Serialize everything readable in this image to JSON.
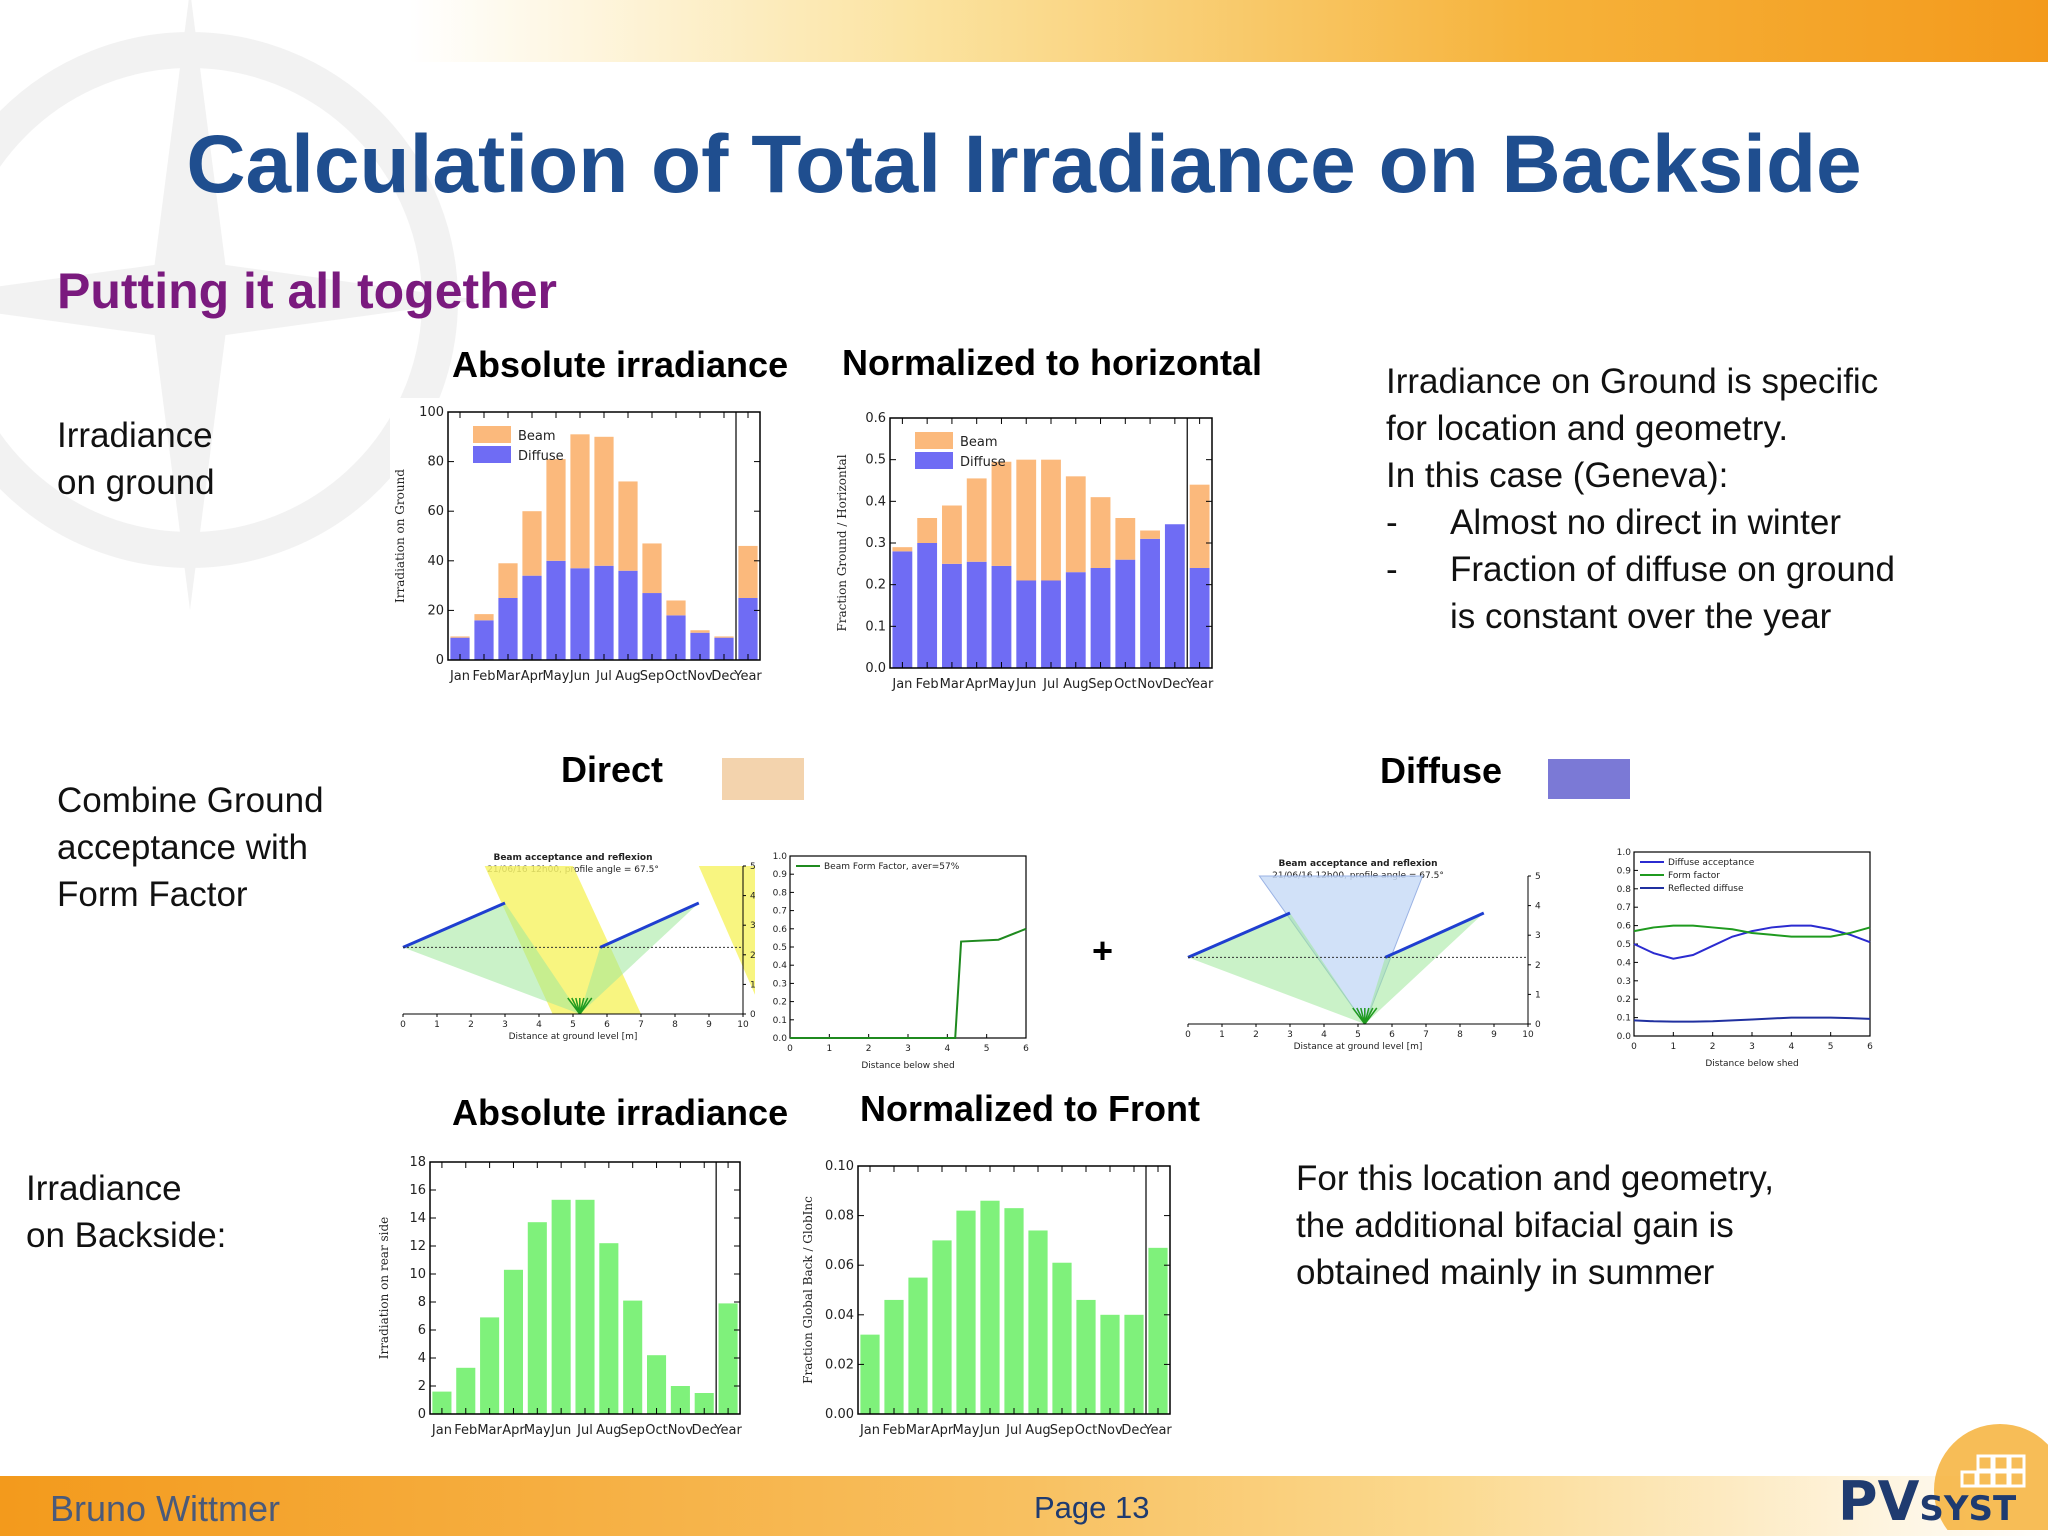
{
  "slide": {
    "title": "Calculation of Total Irradiance on Backside",
    "subtitle": "Putting it all together"
  },
  "row1": {
    "label_line1": "Irradiance",
    "label_line2": "on ground",
    "heading_left": "Absolute irradiance",
    "heading_right": "Normalized to horizontal",
    "note_lines": [
      "Irradiance on Ground is specific",
      "for location and geometry.",
      "In this case (Geneva):"
    ],
    "bullet_marker": "-",
    "bullets": [
      "Almost no direct in winter",
      "Fraction of diffuse on ground",
      "is constant over the year"
    ]
  },
  "row2": {
    "label_lines": [
      "Combine Ground",
      "acceptance with",
      "Form Factor"
    ],
    "direct_label": "Direct",
    "direct_swatch_color": "#f3d3ad",
    "diffuse_label": "Diffuse",
    "diffuse_swatch_color": "#7b79d6",
    "plus_sign": "+"
  },
  "row3": {
    "label_line1": "Irradiance",
    "label_line2": "on Backside:",
    "heading_left": "Absolute irradiance",
    "heading_right": "Normalized to Front",
    "note_lines": [
      "For this location and geometry,",
      "the additional bifacial gain is",
      "obtained mainly in summer"
    ]
  },
  "footer": {
    "author": "Bruno Wittmer",
    "page": "Page 13",
    "logo_main": "PV",
    "logo_rest": "SYST"
  },
  "chart_data": [
    {
      "type": "bar",
      "stacked": true,
      "ylabel": "Irradiation on Ground",
      "ylim": [
        0,
        100
      ],
      "yticks": [
        "0",
        "20",
        "40",
        "60",
        "80",
        "100"
      ],
      "categories": [
        "Jan",
        "Feb",
        "Mar",
        "Apr",
        "May",
        "Jun",
        "Jul",
        "Aug",
        "Sep",
        "Oct",
        "Nov",
        "Dec",
        "Year"
      ],
      "series": [
        {
          "name": "Beam",
          "color": "#fbb97c",
          "values": [
            0.5,
            2.5,
            14,
            26,
            41,
            54,
            52,
            36,
            20,
            6,
            1,
            0.5,
            21
          ]
        },
        {
          "name": "Diffuse",
          "color": "#6f6cf4",
          "values": [
            9,
            16,
            25,
            34,
            40,
            37,
            38,
            36,
            27,
            18,
            11,
            9,
            25
          ]
        }
      ]
    },
    {
      "type": "bar",
      "stacked": true,
      "ylabel": "Fraction Ground / Horizontal",
      "ylim": [
        0,
        0.6
      ],
      "yticks": [
        "0.0",
        "0.1",
        "0.2",
        "0.3",
        "0.4",
        "0.5",
        "0.6"
      ],
      "categories": [
        "Jan",
        "Feb",
        "Mar",
        "Apr",
        "May",
        "Jun",
        "Jul",
        "Aug",
        "Sep",
        "Oct",
        "Nov",
        "Dec",
        "Year"
      ],
      "series": [
        {
          "name": "Beam",
          "color": "#fbb97c",
          "values": [
            0.01,
            0.06,
            0.14,
            0.2,
            0.25,
            0.29,
            0.29,
            0.23,
            0.17,
            0.1,
            0.02,
            0.0,
            0.2
          ]
        },
        {
          "name": "Diffuse",
          "color": "#6f6cf4",
          "values": [
            0.28,
            0.3,
            0.25,
            0.255,
            0.245,
            0.21,
            0.21,
            0.23,
            0.24,
            0.26,
            0.31,
            0.345,
            0.24
          ]
        }
      ]
    },
    {
      "type": "line",
      "title": "Beam acceptance and reflexion",
      "subtitle": "21/06/16 12h00, profile angle = 67.5°",
      "xlabel": "Distance at ground level   [m]",
      "xticks": [
        "0",
        "1",
        "2",
        "3",
        "4",
        "5",
        "6",
        "7",
        "8",
        "9",
        "10"
      ],
      "yticks": [
        "0",
        "1",
        "2",
        "3",
        "4",
        "5"
      ]
    },
    {
      "type": "line",
      "xlabel": "Distance below shed",
      "xlim": [
        0,
        6
      ],
      "ylim": [
        0,
        1
      ],
      "xticks": [
        "0",
        "1",
        "2",
        "3",
        "4",
        "5",
        "6"
      ],
      "yticks": [
        "0.0",
        "0.1",
        "0.2",
        "0.3",
        "0.4",
        "0.5",
        "0.6",
        "0.7",
        "0.8",
        "0.9",
        "1.0"
      ],
      "series": [
        {
          "name": "Beam Form Factor, aver=57%",
          "color": "#1f8a1f",
          "x": [
            0,
            4.2,
            4.35,
            5.3,
            6
          ],
          "y": [
            0,
            0,
            0.53,
            0.54,
            0.6
          ]
        }
      ]
    },
    {
      "type": "line",
      "title": "Beam acceptance and reflexion",
      "subtitle": "21/06/16 12h00, profile angle = 67.5°",
      "xlabel": "Distance at ground level   [m]",
      "xticks": [
        "0",
        "1",
        "2",
        "3",
        "4",
        "5",
        "6",
        "7",
        "8",
        "9",
        "10"
      ],
      "yticks": [
        "0",
        "1",
        "2",
        "3",
        "4",
        "5"
      ]
    },
    {
      "type": "line",
      "xlabel": "Distance below shed",
      "xlim": [
        0,
        6
      ],
      "ylim": [
        0,
        1
      ],
      "xticks": [
        "0",
        "1",
        "2",
        "3",
        "4",
        "5",
        "6"
      ],
      "yticks": [
        "0.0",
        "0.1",
        "0.2",
        "0.3",
        "0.4",
        "0.5",
        "0.6",
        "0.7",
        "0.8",
        "0.9",
        "1.0"
      ],
      "series": [
        {
          "name": "Diffuse acceptance",
          "color": "#2b2bd0",
          "x": [
            0,
            0.5,
            1,
            1.5,
            2,
            2.5,
            3,
            3.5,
            4,
            4.5,
            5,
            5.5,
            6
          ],
          "y": [
            0.5,
            0.45,
            0.42,
            0.44,
            0.49,
            0.54,
            0.57,
            0.59,
            0.6,
            0.6,
            0.58,
            0.55,
            0.51
          ]
        },
        {
          "name": "Form factor",
          "color": "#1f9a1f",
          "x": [
            0,
            0.5,
            1,
            1.5,
            2,
            2.5,
            3,
            3.5,
            4,
            4.5,
            5,
            5.5,
            6
          ],
          "y": [
            0.57,
            0.59,
            0.6,
            0.6,
            0.59,
            0.58,
            0.56,
            0.55,
            0.54,
            0.54,
            0.54,
            0.56,
            0.59
          ]
        },
        {
          "name": "Reflected diffuse",
          "color": "#2030a0",
          "x": [
            0,
            0.5,
            1,
            1.5,
            2,
            2.5,
            3,
            3.5,
            4,
            4.5,
            5,
            5.5,
            6
          ],
          "y": [
            0.085,
            0.08,
            0.078,
            0.078,
            0.08,
            0.085,
            0.09,
            0.095,
            0.1,
            0.1,
            0.1,
            0.097,
            0.093
          ]
        }
      ]
    },
    {
      "type": "bar",
      "ylabel": "Irradiation on rear side",
      "ylim": [
        0,
        18
      ],
      "yticks": [
        "0",
        "2",
        "4",
        "6",
        "8",
        "10",
        "12",
        "14",
        "16",
        "18"
      ],
      "categories": [
        "Jan",
        "Feb",
        "Mar",
        "Apr",
        "May",
        "Jun",
        "Jul",
        "Aug",
        "Sep",
        "Oct",
        "Nov",
        "Dec",
        "Year"
      ],
      "series": [
        {
          "name": "",
          "color": "#7ff17b",
          "values": [
            1.6,
            3.3,
            6.9,
            10.3,
            13.7,
            15.3,
            15.3,
            12.2,
            8.1,
            4.2,
            2.0,
            1.5,
            7.9
          ]
        }
      ]
    },
    {
      "type": "bar",
      "ylabel": "Fraction Global Back / GlobInc",
      "ylim": [
        0,
        0.1
      ],
      "yticks": [
        "0.00",
        "0.02",
        "0.04",
        "0.06",
        "0.08",
        "0.10"
      ],
      "categories": [
        "Jan",
        "Feb",
        "Mar",
        "Apr",
        "May",
        "Jun",
        "Jul",
        "Aug",
        "Sep",
        "Oct",
        "Nov",
        "Dec",
        "Year"
      ],
      "series": [
        {
          "name": "",
          "color": "#7ff17b",
          "values": [
            0.032,
            0.046,
            0.055,
            0.07,
            0.082,
            0.086,
            0.083,
            0.074,
            0.061,
            0.046,
            0.04,
            0.04,
            0.067
          ]
        }
      ]
    }
  ]
}
